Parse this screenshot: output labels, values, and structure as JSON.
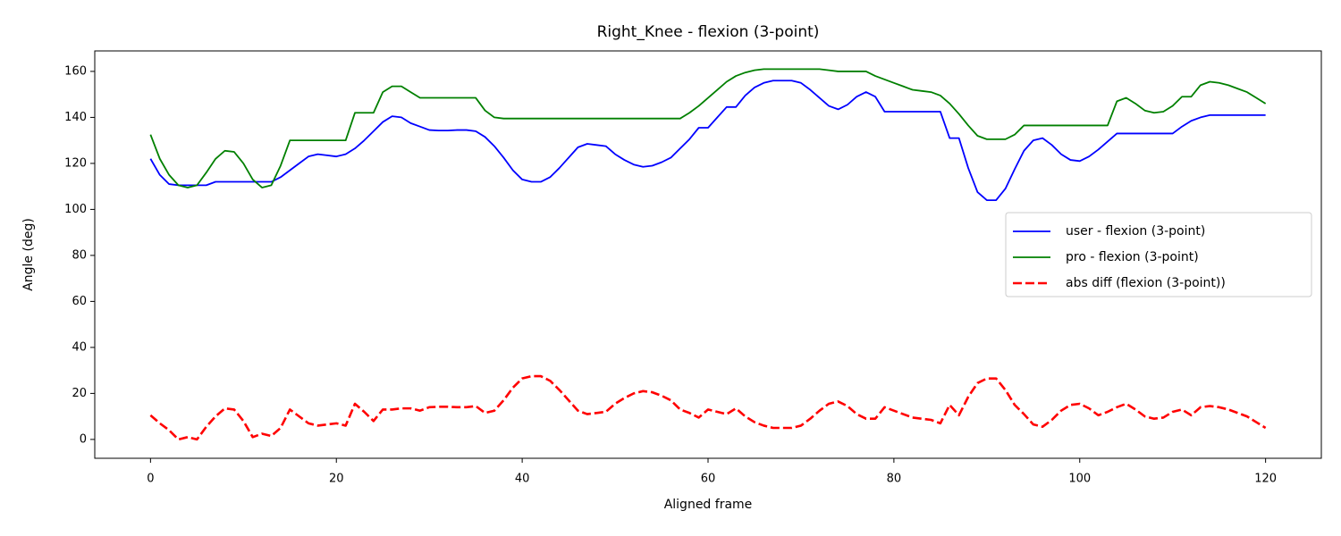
{
  "chart_data": {
    "type": "line",
    "title": "Right_Knee - flexion (3-point)",
    "x_label": "Aligned frame",
    "y_label": "Angle (deg)",
    "x": [
      0,
      1,
      2,
      3,
      4,
      5,
      6,
      7,
      8,
      9,
      10,
      11,
      12,
      13,
      14,
      15,
      16,
      17,
      18,
      19,
      20,
      21,
      22,
      23,
      24,
      25,
      26,
      27,
      28,
      29,
      30,
      31,
      32,
      33,
      34,
      35,
      36,
      37,
      38,
      39,
      40,
      41,
      42,
      43,
      44,
      45,
      46,
      47,
      48,
      49,
      50,
      51,
      52,
      53,
      54,
      55,
      56,
      57,
      58,
      59,
      60,
      61,
      62,
      63,
      64,
      65,
      66,
      67,
      68,
      69,
      70,
      71,
      72,
      73,
      74,
      75,
      76,
      77,
      78,
      79,
      80,
      81,
      82,
      83,
      84,
      85,
      86,
      87,
      88,
      89,
      90,
      91,
      92,
      93,
      94,
      95,
      96,
      97,
      98,
      99,
      100,
      101,
      102,
      103,
      104,
      105,
      106,
      107,
      108,
      109,
      110,
      111,
      112,
      113,
      114,
      115,
      116,
      117,
      118,
      119,
      120
    ],
    "series": [
      {
        "name": "user - flexion (3-point)",
        "color": "#0000ff",
        "dash": false,
        "values": [
          122,
          115,
          111,
          110.5,
          110.5,
          110.5,
          110.5,
          112,
          112,
          112,
          112,
          112,
          112,
          112,
          114,
          117,
          120,
          123,
          124,
          123.5,
          123,
          124,
          126.5,
          130,
          134,
          138,
          140.5,
          140,
          137.5,
          136,
          134.5,
          134.3,
          134.3,
          134.5,
          134.5,
          134,
          131.5,
          127.5,
          122.5,
          117,
          113,
          112,
          112,
          114,
          118,
          122.5,
          127,
          128.5,
          128,
          127.5,
          124,
          121.5,
          119.5,
          118.5,
          119,
          120.5,
          122.5,
          126.5,
          130.5,
          135.5,
          135.5,
          140,
          144.5,
          144.5,
          149.5,
          153,
          155,
          156,
          156,
          156,
          155,
          152,
          148.5,
          145,
          143.5,
          145.5,
          149,
          151,
          149,
          142.5,
          142.5,
          142.5,
          142.5,
          142.5,
          142.5,
          142.5,
          131,
          131,
          118,
          107.5,
          104,
          104,
          109,
          117.5,
          125.5,
          130,
          131,
          128,
          124,
          121.5,
          121,
          123,
          126,
          129.5,
          133,
          133,
          133,
          133,
          133,
          133,
          133,
          136,
          138.5,
          140,
          141,
          141,
          141,
          141,
          141,
          141,
          141
        ]
      },
      {
        "name": "pro - flexion (3-point)",
        "color": "#008000",
        "dash": false,
        "values": [
          132.5,
          122,
          115,
          110.5,
          109.5,
          110.5,
          116,
          122,
          125.5,
          125,
          120,
          113,
          109.5,
          110.5,
          119,
          130,
          130,
          130,
          130,
          130,
          130,
          130,
          142,
          142,
          142,
          151,
          153.5,
          153.5,
          151,
          148.5,
          148.5,
          148.5,
          148.5,
          148.5,
          148.5,
          148.5,
          143,
          140,
          139.5,
          139.5,
          139.5,
          139.5,
          139.5,
          139.5,
          139.5,
          139.5,
          139.5,
          139.5,
          139.5,
          139.5,
          139.5,
          139.5,
          139.5,
          139.5,
          139.5,
          139.5,
          139.5,
          139.5,
          142,
          145,
          148.5,
          152,
          155.5,
          158,
          159.5,
          160.5,
          161,
          161,
          161,
          161,
          161,
          161,
          161,
          160.5,
          160,
          160,
          160,
          160,
          158,
          156.5,
          155,
          153.5,
          152,
          151.5,
          151,
          149.5,
          146,
          141.5,
          136.5,
          132,
          130.5,
          130.5,
          130.5,
          132.5,
          136.5,
          136.5,
          136.5,
          136.5,
          136.5,
          136.5,
          136.5,
          136.5,
          136.5,
          136.5,
          147,
          148.5,
          146,
          143,
          142,
          142.5,
          145,
          149,
          149,
          154,
          155.5,
          155,
          154,
          152.5,
          151,
          148.5,
          146
        ]
      },
      {
        "name": "abs diff (flexion (3-point))",
        "color": "#ff0000",
        "dash": true,
        "values": [
          10.5,
          7,
          4,
          0,
          1,
          0,
          5.5,
          10,
          13.5,
          13,
          8,
          1,
          2.5,
          1.5,
          5,
          13,
          10,
          7,
          6,
          6.5,
          7,
          6,
          15.5,
          12,
          8,
          13,
          13,
          13.5,
          13.5,
          12.5,
          14,
          14.2,
          14.2,
          14,
          14,
          14.5,
          11.5,
          12.5,
          17,
          22.5,
          26.5,
          27.5,
          27.5,
          25.5,
          21.5,
          17,
          12.5,
          11,
          11.5,
          12,
          15.5,
          18,
          20,
          21,
          20.5,
          19,
          17,
          13,
          11.5,
          9.5,
          13,
          12,
          11,
          13.5,
          10,
          7.5,
          6,
          5,
          5,
          5,
          6,
          9,
          12.5,
          15.5,
          16.5,
          14.5,
          11,
          9,
          9,
          14,
          12.5,
          11,
          9.5,
          9,
          8.5,
          7,
          15,
          10.5,
          18.5,
          24.5,
          26.5,
          26.5,
          21.5,
          15,
          11,
          6.5,
          5.5,
          8.5,
          12.5,
          15,
          15.5,
          13.5,
          10.5,
          12,
          14,
          15.5,
          13,
          10,
          9,
          9.5,
          12,
          13,
          10.5,
          14,
          14.5,
          14,
          13,
          11.5,
          10,
          7.5,
          5
        ]
      }
    ],
    "xlim": [
      -6,
      126
    ],
    "ylim": [
      -8.2,
      168.9
    ],
    "xticks": [
      0,
      20,
      40,
      60,
      80,
      100,
      120
    ],
    "yticks": [
      0,
      20,
      40,
      60,
      80,
      100,
      120,
      140,
      160
    ],
    "grid": false,
    "legend": "center right"
  }
}
